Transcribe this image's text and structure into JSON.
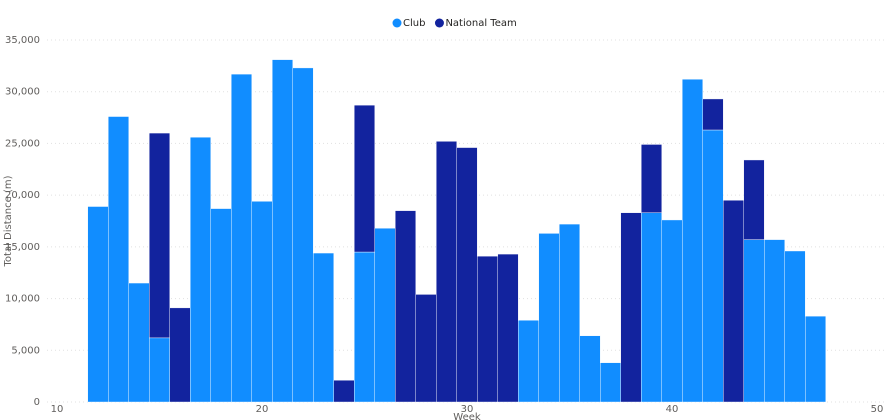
{
  "chart_data": {
    "type": "stacked_bar",
    "x_label": "Week",
    "y_label": "Total Distance (m)",
    "x": [
      12,
      13,
      14,
      15,
      16,
      17,
      18,
      19,
      20,
      21,
      22,
      23,
      24,
      25,
      26,
      27,
      28,
      29,
      30,
      31,
      32,
      33,
      34,
      35,
      36,
      37,
      38,
      39,
      40,
      41,
      42,
      43,
      44,
      45,
      46,
      47
    ],
    "series": [
      {
        "name": "Club",
        "color": "#118dff",
        "values": [
          18900,
          27600,
          11500,
          6200,
          null,
          25600,
          18700,
          31700,
          19400,
          33100,
          32300,
          14400,
          null,
          14500,
          16800,
          null,
          null,
          null,
          null,
          null,
          null,
          7900,
          16300,
          17200,
          6400,
          3800,
          null,
          18300,
          17600,
          31200,
          26300,
          null,
          15700,
          15700,
          14600,
          8300
        ]
      },
      {
        "name": "National Team",
        "color": "#12239e",
        "values": [
          null,
          null,
          null,
          19800,
          9100,
          null,
          null,
          null,
          null,
          null,
          null,
          null,
          2100,
          14200,
          null,
          18500,
          10400,
          25200,
          24600,
          14100,
          14300,
          null,
          null,
          null,
          null,
          null,
          18300,
          6600,
          null,
          null,
          3000,
          19500,
          7700,
          null,
          null,
          null
        ]
      }
    ],
    "xlim": [
      10,
      50
    ],
    "xticks": [
      10,
      20,
      30,
      40,
      50
    ],
    "ylim": [
      0,
      35000
    ],
    "yticks": [
      0,
      {
        "value": 5000,
        "label": "5,000"
      },
      {
        "value": 10000,
        "label": "10,000"
      },
      {
        "value": 15000,
        "label": "15,000"
      },
      {
        "value": 20000,
        "label": "20,000"
      },
      {
        "value": 25000,
        "label": "25,000"
      },
      {
        "value": 30000,
        "label": "30,000"
      },
      {
        "value": 35000,
        "label": "35,000"
      }
    ],
    "grid": true,
    "legend": "top"
  }
}
